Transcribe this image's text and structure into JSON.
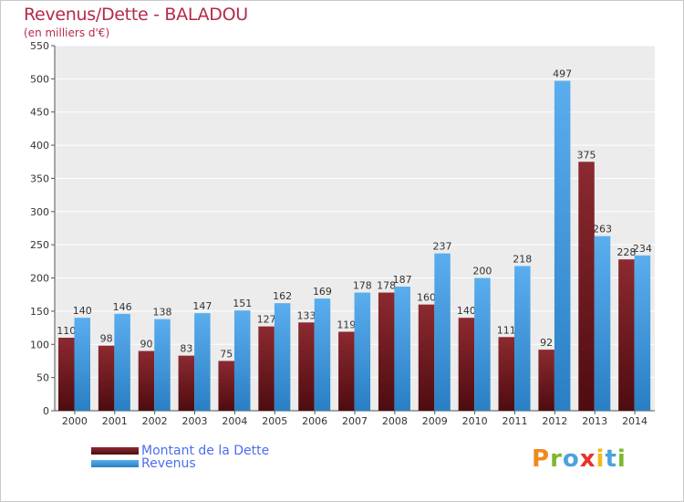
{
  "chart_data": {
    "type": "bar",
    "title": "Revenus/Dette - BALADOU",
    "subtitle": "(en milliers d'€)",
    "categories": [
      "2000",
      "2001",
      "2002",
      "2003",
      "2004",
      "2005",
      "2006",
      "2007",
      "2008",
      "2009",
      "2010",
      "2011",
      "2012",
      "2013",
      "2014"
    ],
    "series": [
      {
        "name": "Montant de la Dette",
        "color": "#7a1e24",
        "values": [
          110,
          98,
          90,
          83,
          75,
          127,
          133,
          119,
          178,
          160,
          140,
          111,
          92,
          375,
          228
        ]
      },
      {
        "name": "Revenus",
        "color": "#3f9be0",
        "values": [
          140,
          146,
          138,
          147,
          151,
          162,
          169,
          178,
          187,
          237,
          200,
          218,
          497,
          263,
          234
        ]
      }
    ],
    "ylim": [
      0,
      550
    ],
    "yticks": [
      0,
      50,
      100,
      150,
      200,
      250,
      300,
      350,
      400,
      450,
      500,
      550
    ],
    "grid": true,
    "legend_position": "bottom-left"
  },
  "logo": {
    "text": "Proxiti",
    "letters": [
      {
        "ch": "P",
        "color": "#f08a1c"
      },
      {
        "ch": "r",
        "color": "#7cb82f"
      },
      {
        "ch": "o",
        "color": "#4aa3df"
      },
      {
        "ch": "x",
        "color": "#e8312a"
      },
      {
        "ch": "i",
        "color": "#f6b91a"
      },
      {
        "ch": "t",
        "color": "#4aa3df"
      },
      {
        "ch": "i",
        "color": "#7cb82f"
      }
    ]
  }
}
